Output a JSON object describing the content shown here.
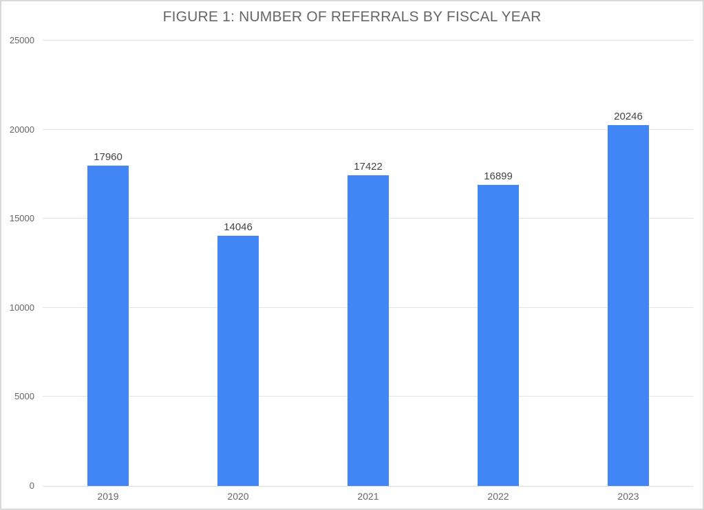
{
  "chart_data": {
    "type": "bar",
    "title": "FIGURE 1: NUMBER OF REFERRALS BY FISCAL YEAR",
    "categories": [
      "2019",
      "2020",
      "2021",
      "2022",
      "2023"
    ],
    "values": [
      17960,
      14046,
      17422,
      16899,
      20246
    ],
    "value_labels": [
      "17960",
      "14046",
      "17422",
      "16899",
      "20246"
    ],
    "xlabel": "",
    "ylabel": "",
    "ylim": [
      0,
      25000
    ],
    "yticks": [
      0,
      5000,
      10000,
      15000,
      20000,
      25000
    ],
    "ytick_labels": [
      "0",
      "5000",
      "10000",
      "15000",
      "20000",
      "25000"
    ],
    "grid": true,
    "legend_position": "none",
    "bar_color": "#4285F4",
    "title_color": "#666666",
    "axis_label_color": "#666666",
    "annotation_color": "#444444",
    "frame_border_color": "#d9d9d9"
  }
}
